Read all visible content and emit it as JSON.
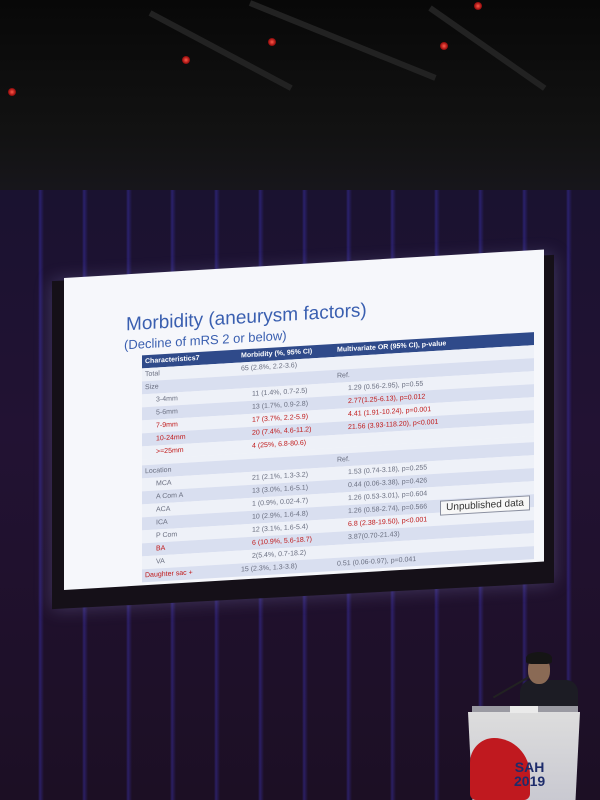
{
  "slide": {
    "title": "Morbidity (aneurysm factors)",
    "subtitle": "(Decline of mRS 2 or below)",
    "badge": "Unpublished data",
    "header": {
      "col1": "Characteristics7",
      "col2": "Morbidity (%, 95% CI)",
      "col3": "Multivariate OR (95% CI), p-value"
    },
    "rows": [
      {
        "label": "Total",
        "indent": false,
        "morbidity": "65 (2.8%, 2.2-3.6)",
        "or": "",
        "red_label": false,
        "red_morb": false,
        "red_or": false,
        "band": "plain"
      },
      {
        "label": "Size",
        "indent": false,
        "morbidity": "",
        "or": "Ref.",
        "red_label": false,
        "red_morb": false,
        "red_or": false,
        "band": "band"
      },
      {
        "label": "3-4mm",
        "indent": true,
        "morbidity": "11 (1.4%, 0.7-2.5)",
        "or": "1.29 (0.56-2.95), p=0.55",
        "red_label": false,
        "red_morb": false,
        "red_or": false,
        "band": "plain"
      },
      {
        "label": "5-6mm",
        "indent": true,
        "morbidity": "13 (1.7%, 0.9-2.8)",
        "or": "2.77(1.25-6.13), p=0.012",
        "red_label": false,
        "red_morb": false,
        "red_or": true,
        "band": "band"
      },
      {
        "label": "7-9mm",
        "indent": true,
        "morbidity": "17 (3.7%, 2.2-5.9)",
        "or": "4.41 (1.91-10.24), p=0.001",
        "red_label": true,
        "red_morb": true,
        "red_or": true,
        "band": "plain"
      },
      {
        "label": "10-24mm",
        "indent": true,
        "morbidity": "20 (7.4%, 4.6-11.2)",
        "or": "21.56 (3.93-118.20), p<0.001",
        "red_label": true,
        "red_morb": true,
        "red_or": true,
        "band": "band"
      },
      {
        "label": ">=25mm",
        "indent": true,
        "morbidity": "4 (25%, 6.8-80.6)",
        "or": "",
        "red_label": true,
        "red_morb": true,
        "red_or": false,
        "band": "plain"
      },
      {
        "label": "Location",
        "indent": false,
        "morbidity": "",
        "or": "Ref.",
        "red_label": false,
        "red_morb": false,
        "red_or": false,
        "band": "band"
      },
      {
        "label": "MCA",
        "indent": true,
        "morbidity": "21 (2.1%, 1.3-3.2)",
        "or": "1.53 (0.74-3.18), p=0.255",
        "red_label": false,
        "red_morb": false,
        "red_or": false,
        "band": "plain"
      },
      {
        "label": "A Com A",
        "indent": true,
        "morbidity": "13 (3.0%, 1.6-5.1)",
        "or": "0.44 (0.06-3.38), p=0.426",
        "red_label": false,
        "red_morb": false,
        "red_or": false,
        "band": "band"
      },
      {
        "label": "ACA",
        "indent": true,
        "morbidity": "1 (0.9%, 0.02-4.7)",
        "or": "1.26 (0.53-3.01), p=0.604",
        "red_label": false,
        "red_morb": false,
        "red_or": false,
        "band": "plain"
      },
      {
        "label": "ICA",
        "indent": true,
        "morbidity": "10 (2.9%, 1.6-4.8)",
        "or": "1.26 (0.58-2.74), p=0.566",
        "red_label": false,
        "red_morb": false,
        "red_or": false,
        "band": "band"
      },
      {
        "label": "P Com",
        "indent": true,
        "morbidity": "12 (3.1%, 1.6-5.4)",
        "or": "6.8 (2.38-19.50), p<0.001",
        "red_label": false,
        "red_morb": false,
        "red_or": true,
        "band": "plain"
      },
      {
        "label": "BA",
        "indent": true,
        "morbidity": "6 (10.9%, 5.6-18.7)",
        "or": "3.87(0.70-21.43)",
        "red_label": true,
        "red_morb": true,
        "red_or": false,
        "band": "band"
      },
      {
        "label": "VA",
        "indent": true,
        "morbidity": "2(5.4%, 0.7-18.2)",
        "or": "",
        "red_label": false,
        "red_morb": false,
        "red_or": false,
        "band": "plain"
      },
      {
        "label": "Daughter sac +",
        "indent": false,
        "morbidity": "15 (2.3%, 1.3-3.8)",
        "or": "0.51 (0.06-0.97), p=0.041",
        "red_label": true,
        "red_morb": false,
        "red_or": false,
        "band": "band"
      }
    ]
  },
  "podium": {
    "logo_line1": "SAH",
    "logo_line2": "2019"
  },
  "colors": {
    "title_blue": "#3a5fb0",
    "header_navy": "#2f4a8a",
    "highlight_red": "#c01818",
    "wall_blue": "#4a3cdc"
  }
}
